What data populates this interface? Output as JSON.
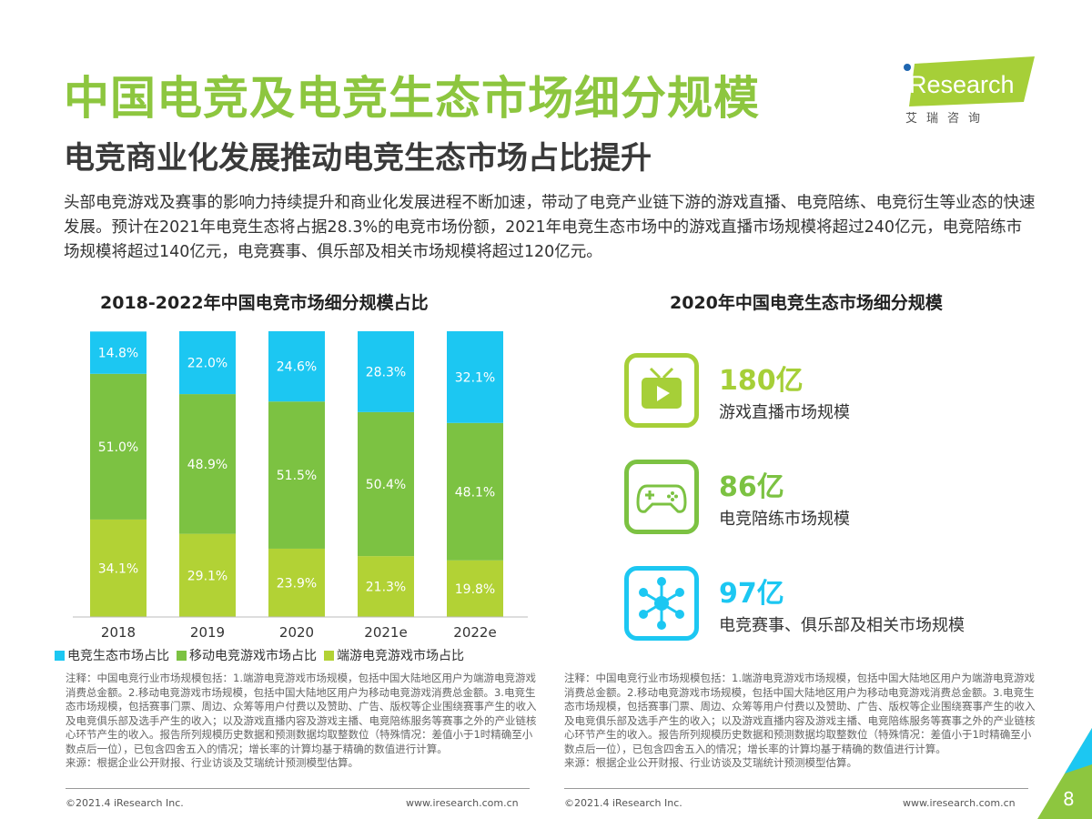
{
  "title": "中国电竞及电竞生态市场细分规模",
  "subtitle": "电竞商业化发展推动电竞生态市场占比提升",
  "intro": "头部电竞游戏及赛事的影响力持续提升和商业化发展进程不断加速，带动了电竞产业链下游的游戏直播、电竞陪练、电竞衍生等业态的快速发展。预计在2021年电竞生态将占据28.3%的电竞市场份额，2021年电竞生态市场中的游戏直播市场规模将超过240亿元，电竞陪练市场规模将超过140亿元，电竞赛事、俱乐部及相关市场规模将超过120亿元。",
  "logo": {
    "brand": "iResearch",
    "cn": "艾 瑞 咨 询"
  },
  "chart_data": {
    "type": "bar",
    "stacked": true,
    "title": "2018-2022年中国电竞市场细分规模占比",
    "categories": [
      "2018",
      "2019",
      "2020",
      "2021e",
      "2022e"
    ],
    "series": [
      {
        "name": "端游电竞游戏市场占比",
        "color": "#b2d235",
        "values": [
          34.1,
          29.1,
          23.9,
          21.3,
          19.8
        ]
      },
      {
        "name": "移动电竞游戏市场占比",
        "color": "#7cc242",
        "values": [
          51.0,
          48.9,
          51.5,
          50.4,
          48.1
        ]
      },
      {
        "name": "电竞生态市场占比",
        "color": "#1cc7f2",
        "values": [
          14.8,
          22.0,
          24.6,
          28.3,
          32.1
        ]
      }
    ],
    "unit": "%",
    "ylim": [
      0,
      100
    ],
    "legend_order": [
      "电竞生态市场占比",
      "移动电竞游戏市场占比",
      "端游电竞游戏市场占比"
    ],
    "legend_position": "bottom"
  },
  "right": {
    "title": "2020年中国电竞生态市场细分规模",
    "items": [
      {
        "icon": "tv-play-icon",
        "value": "180亿",
        "label": "游戏直播市场规模",
        "color": "#a6cf38"
      },
      {
        "icon": "gamepad-icon",
        "value": "86亿",
        "label": "电竞陪练市场规模",
        "color": "#7cc242"
      },
      {
        "icon": "network-hub-icon",
        "value": "97亿",
        "label": "电竞赛事、俱乐部及相关市场规模",
        "color": "#1cc7f2"
      }
    ]
  },
  "note": "注释：中国电竞行业市场规模包括：1.端游电竞游戏市场规模，包括中国大陆地区用户为端游电竞游戏消费总金额。2.移动电竞游戏市场规模，包括中国大陆地区用户为移动电竞游戏消费总金额。3.电竞生态市场规模，包括赛事门票、周边、众筹等用户付费以及赞助、广告、版权等企业围绕赛事产生的收入及电竞俱乐部及选手产生的收入；以及游戏直播内容及游戏主播、电竞陪练服务等赛事之外的产业链核心环节产生的收入。报告所列规模历史数据和预测数据均取整数位（特殊情况：差值小于1时精确至小数点后一位），已包含四舍五入的情况；增长率的计算均基于精确的数值进行计算。",
  "source": "来源：根据企业公开财报、行业访谈及艾瑞统计预测模型估算。",
  "footer": {
    "copyright": "©2021.4 iResearch Inc.",
    "url": "www.iresearch.com.cn",
    "page": "8"
  }
}
